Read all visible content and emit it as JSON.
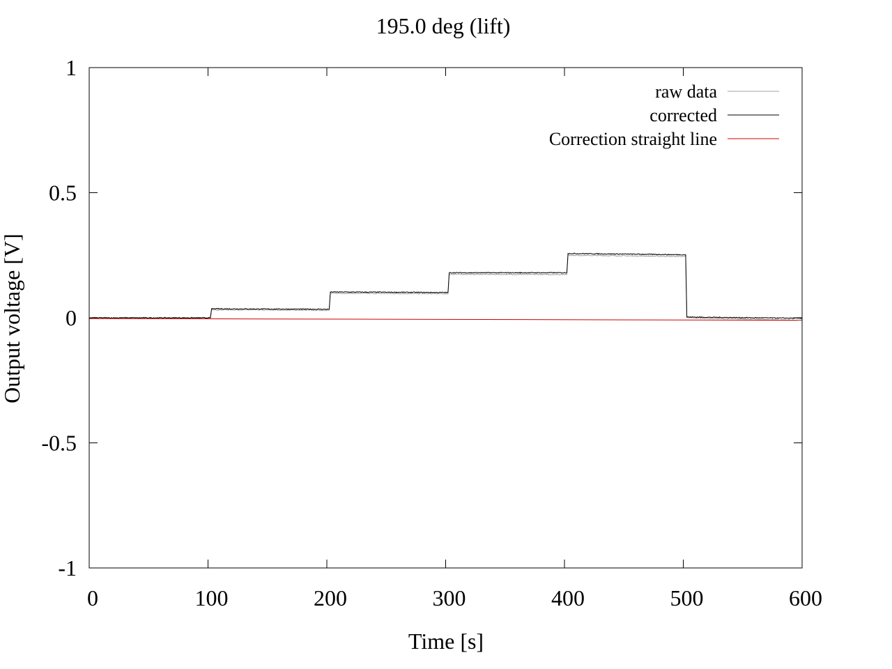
{
  "chart_data": {
    "type": "line",
    "title": "195.0 deg (lift)",
    "xlabel": "Time [s]",
    "ylabel": "Output voltage [V]",
    "xlim": [
      0,
      600
    ],
    "ylim": [
      -1,
      1
    ],
    "xticks": [
      0,
      100,
      200,
      300,
      400,
      500,
      600
    ],
    "xtick_labels": [
      "0",
      "100",
      "200",
      "300",
      "400",
      "500",
      "600"
    ],
    "yticks": [
      -1,
      -0.5,
      0,
      0.5,
      1
    ],
    "ytick_labels": [
      "-1",
      "-0.5",
      "0",
      "0.5",
      "1"
    ],
    "grid": false,
    "legend_position": "top-right",
    "series": [
      {
        "name": "raw data",
        "color": "#a0a0a0",
        "x": [
          0,
          102,
          103,
          202,
          203,
          302,
          303,
          402,
          403,
          502,
          503,
          600
        ],
        "y": [
          -0.003,
          -0.002,
          0.032,
          0.03,
          0.098,
          0.096,
          0.174,
          0.173,
          0.25,
          0.245,
          0.0,
          -0.01
        ]
      },
      {
        "name": "corrected",
        "color": "#000000",
        "x": [
          0,
          102,
          103,
          202,
          203,
          302,
          303,
          402,
          403,
          502,
          503,
          600
        ],
        "y": [
          0.0,
          0.0,
          0.036,
          0.034,
          0.103,
          0.101,
          0.18,
          0.18,
          0.257,
          0.252,
          0.003,
          -0.002
        ]
      },
      {
        "name": "Correction straight line",
        "color": "#cc0000",
        "x": [
          0,
          600
        ],
        "y": [
          -0.003,
          -0.01
        ]
      }
    ]
  }
}
